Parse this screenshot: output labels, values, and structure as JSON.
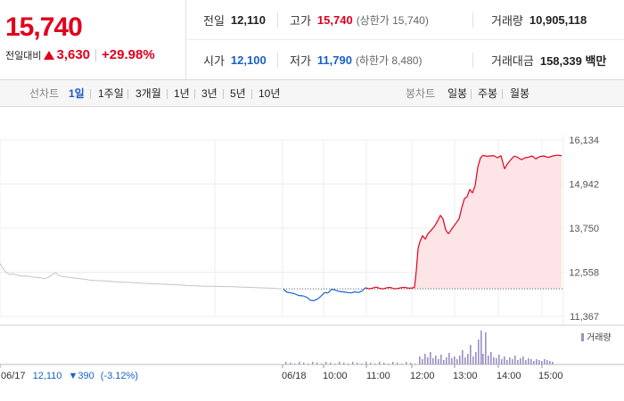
{
  "summary": {
    "price": "15,740",
    "change_label": "전일대비",
    "change_value": "3,630",
    "change_percent": "+29.98%"
  },
  "stats": {
    "prev_close": {
      "label": "전일",
      "value": "12,110"
    },
    "high": {
      "label": "고가",
      "value": "15,740",
      "sub": "(상한가 15,740)"
    },
    "volume": {
      "label": "거래량",
      "value": "10,905,118"
    },
    "open": {
      "label": "시가",
      "value": "12,100"
    },
    "low": {
      "label": "저가",
      "value": "11,790",
      "sub": "(하한가 8,480)"
    },
    "turnover": {
      "label": "거래대금",
      "value": "158,339 백만"
    }
  },
  "tabs": {
    "line_label": "선차트",
    "line_tabs": [
      "1일",
      "1주일",
      "3개월",
      "1년",
      "3년",
      "5년",
      "10년"
    ],
    "active_tab": "1일",
    "candle_label": "봉차트",
    "candle_tabs": [
      "일봉",
      "주봉",
      "월봉"
    ]
  },
  "colors": {
    "up": "#e0001d",
    "down": "#1861c9",
    "prev_day_line": "#c4c4c4",
    "area_fill": "#fde4e6",
    "volume": "#9b8fc4"
  },
  "chart_data": {
    "type": "line",
    "y_ticks": [
      "16,134",
      "14,942",
      "13,750",
      "12,558",
      "11,367"
    ],
    "ylim": [
      11367,
      16134
    ],
    "baseline": 12110,
    "x_tick_labels": [
      "06/17",
      "06/18",
      "10:00",
      "11:00",
      "12:00",
      "13:00",
      "14:00",
      "15:00"
    ],
    "prev_day_label": {
      "date": "06/17",
      "price": "12,110",
      "change": "▼390",
      "percent": "(-3.12%)"
    },
    "volume_legend": "거래량",
    "prev_day_series": [
      [
        0,
        12800
      ],
      [
        3,
        12680
      ],
      [
        6,
        12580
      ],
      [
        9,
        12520
      ],
      [
        12,
        12500
      ],
      [
        15,
        12520
      ],
      [
        18,
        12490
      ],
      [
        22,
        12470
      ],
      [
        26,
        12450
      ],
      [
        30,
        12460
      ],
      [
        35,
        12430
      ],
      [
        40,
        12420
      ],
      [
        45,
        12410
      ],
      [
        50,
        12380
      ],
      [
        55,
        12430
      ],
      [
        60,
        12520
      ],
      [
        63,
        12540
      ],
      [
        66,
        12470
      ],
      [
        70,
        12440
      ],
      [
        75,
        12430
      ],
      [
        80,
        12410
      ],
      [
        85,
        12400
      ],
      [
        90,
        12380
      ],
      [
        95,
        12370
      ],
      [
        100,
        12350
      ],
      [
        110,
        12330
      ],
      [
        120,
        12320
      ],
      [
        130,
        12300
      ],
      [
        140,
        12290
      ],
      [
        150,
        12280
      ],
      [
        160,
        12260
      ],
      [
        170,
        12250
      ],
      [
        180,
        12240
      ],
      [
        190,
        12230
      ],
      [
        200,
        12220
      ],
      [
        210,
        12200
      ],
      [
        220,
        12190
      ],
      [
        230,
        12180
      ],
      [
        240,
        12180
      ],
      [
        250,
        12170
      ],
      [
        260,
        12170
      ],
      [
        270,
        12160
      ],
      [
        280,
        12150
      ],
      [
        290,
        12140
      ],
      [
        300,
        12130
      ],
      [
        310,
        12120
      ],
      [
        316,
        12110
      ]
    ],
    "today_series": [
      [
        318,
        12100
      ],
      [
        322,
        12020
      ],
      [
        326,
        12000
      ],
      [
        330,
        11980
      ],
      [
        335,
        11930
      ],
      [
        340,
        11920
      ],
      [
        345,
        11870
      ],
      [
        348,
        11800
      ],
      [
        352,
        11790
      ],
      [
        356,
        11830
      ],
      [
        360,
        11910
      ],
      [
        364,
        12010
      ],
      [
        368,
        12000
      ],
      [
        372,
        12100
      ],
      [
        376,
        12080
      ],
      [
        380,
        12040
      ],
      [
        385,
        12030
      ],
      [
        390,
        12010
      ],
      [
        394,
        12000
      ],
      [
        398,
        12030
      ],
      [
        402,
        12010
      ],
      [
        406,
        12050
      ],
      [
        410,
        12140
      ],
      [
        414,
        12110
      ],
      [
        418,
        12130
      ],
      [
        422,
        12160
      ],
      [
        426,
        12120
      ],
      [
        430,
        12110
      ],
      [
        434,
        12140
      ],
      [
        438,
        12150
      ],
      [
        442,
        12110
      ],
      [
        446,
        12120
      ],
      [
        450,
        12140
      ],
      [
        454,
        12150
      ],
      [
        458,
        12130
      ],
      [
        462,
        12130
      ],
      [
        465,
        12150
      ],
      [
        467,
        12600
      ],
      [
        469,
        13200
      ],
      [
        471,
        13380
      ],
      [
        474,
        13550
      ],
      [
        477,
        13450
      ],
      [
        480,
        13600
      ],
      [
        484,
        13700
      ],
      [
        488,
        13820
      ],
      [
        491,
        13950
      ],
      [
        494,
        14100
      ],
      [
        497,
        14000
      ],
      [
        500,
        13700
      ],
      [
        503,
        13600
      ],
      [
        506,
        13700
      ],
      [
        509,
        13800
      ],
      [
        512,
        13900
      ],
      [
        515,
        14000
      ],
      [
        518,
        14300
      ],
      [
        521,
        14550
      ],
      [
        524,
        14600
      ],
      [
        527,
        14800
      ],
      [
        530,
        14700
      ],
      [
        533,
        14900
      ],
      [
        536,
        15400
      ],
      [
        539,
        15650
      ],
      [
        542,
        15720
      ],
      [
        546,
        15690
      ],
      [
        550,
        15700
      ],
      [
        554,
        15710
      ],
      [
        558,
        15650
      ],
      [
        562,
        15710
      ],
      [
        566,
        15350
      ],
      [
        569,
        15480
      ],
      [
        573,
        15600
      ],
      [
        577,
        15700
      ],
      [
        581,
        15660
      ],
      [
        585,
        15600
      ],
      [
        589,
        15650
      ],
      [
        593,
        15670
      ],
      [
        597,
        15700
      ],
      [
        601,
        15620
      ],
      [
        605,
        15680
      ],
      [
        610,
        15700
      ],
      [
        615,
        15660
      ],
      [
        620,
        15700
      ],
      [
        625,
        15720
      ],
      [
        630,
        15710
      ]
    ],
    "volume_bars": [
      [
        470,
        9
      ],
      [
        473,
        6
      ],
      [
        476,
        12
      ],
      [
        479,
        8
      ],
      [
        482,
        14
      ],
      [
        485,
        7
      ],
      [
        488,
        10
      ],
      [
        491,
        6
      ],
      [
        494,
        11
      ],
      [
        497,
        5
      ],
      [
        500,
        8
      ],
      [
        503,
        13
      ],
      [
        506,
        7
      ],
      [
        509,
        9
      ],
      [
        512,
        6
      ],
      [
        515,
        10
      ],
      [
        518,
        16
      ],
      [
        521,
        8
      ],
      [
        524,
        12
      ],
      [
        527,
        22
      ],
      [
        530,
        9
      ],
      [
        533,
        14
      ],
      [
        536,
        28
      ],
      [
        539,
        38
      ],
      [
        541,
        12
      ],
      [
        544,
        36
      ],
      [
        547,
        10
      ],
      [
        550,
        14
      ],
      [
        553,
        8
      ],
      [
        556,
        7
      ],
      [
        559,
        11
      ],
      [
        562,
        6
      ],
      [
        565,
        9
      ],
      [
        568,
        5
      ],
      [
        571,
        8
      ],
      [
        574,
        6
      ],
      [
        577,
        10
      ],
      [
        580,
        5
      ],
      [
        583,
        7
      ],
      [
        586,
        9
      ],
      [
        589,
        5
      ],
      [
        592,
        7
      ],
      [
        595,
        6
      ],
      [
        598,
        4
      ],
      [
        601,
        6
      ],
      [
        604,
        5
      ],
      [
        607,
        4
      ],
      [
        610,
        6
      ],
      [
        613,
        5
      ],
      [
        616,
        4
      ],
      [
        619,
        3
      ]
    ]
  }
}
